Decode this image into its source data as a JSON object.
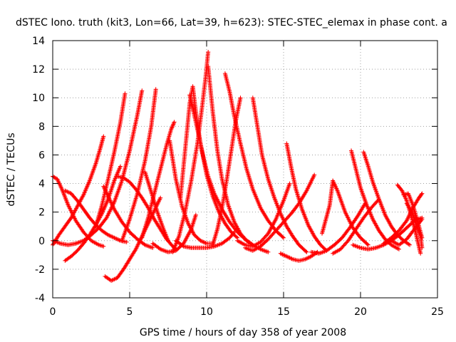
{
  "chart_data": {
    "type": "scatter",
    "title": "dSTEC Iono. truth (kit3, Lon=66, Lat=39, h=623): STEC-STEC_elemax in phase cont. a",
    "xlabel": "GPS time / hours of day 358 of year 2008",
    "ylabel": "dSTEC  / TECUs",
    "xlim": [
      0,
      25
    ],
    "ylim": [
      -4,
      14
    ],
    "xticks": [
      "0",
      "5",
      "10",
      "15",
      "20",
      "25"
    ],
    "yticks": [
      "-4",
      "-2",
      "0",
      "2",
      "4",
      "6",
      "8",
      "10",
      "12",
      "14"
    ],
    "grid": true,
    "marker": "+",
    "color": "#ff0000",
    "series": [
      {
        "arcs": [
          {
            "x": [
              0.0,
              0.3,
              0.6,
              1.0,
              1.5,
              2.0,
              2.5,
              3.0,
              3.3
            ],
            "y": [
              4.5,
              4.3,
              3.6,
              2.5,
              1.4,
              0.6,
              0.0,
              -0.3,
              -0.4
            ]
          },
          {
            "x": [
              0.0,
              0.4,
              0.8,
              1.2,
              1.6,
              2.0,
              2.4,
              2.8,
              3.1,
              3.3
            ],
            "y": [
              -0.3,
              0.4,
              1.0,
              1.6,
              2.4,
              3.2,
              4.2,
              5.4,
              6.5,
              7.3
            ]
          },
          {
            "x": [
              0.8,
              1.2,
              1.6,
              2.0,
              2.4,
              2.8,
              3.2,
              3.6,
              4.0,
              4.4,
              4.8
            ],
            "y": [
              3.5,
              3.3,
              2.8,
              2.2,
              1.6,
              1.1,
              0.7,
              0.4,
              0.2,
              0.0,
              -0.1
            ]
          },
          {
            "x": [
              0.8,
              1.2,
              1.6,
              2.0,
              2.4,
              2.8,
              3.2,
              3.6,
              4.0,
              4.4
            ],
            "y": [
              -1.4,
              -1.1,
              -0.7,
              -0.2,
              0.4,
              1.1,
              1.9,
              2.9,
              4.2,
              5.2
            ]
          }
        ]
      },
      {
        "arcs": [
          {
            "x": [
              0.0,
              0.5,
              1.0,
              1.5,
              2.0,
              2.5,
              3.0,
              3.5,
              4.0,
              4.5,
              5.0,
              5.5,
              5.8
            ],
            "y": [
              0.0,
              -0.2,
              -0.3,
              -0.2,
              0.0,
              0.4,
              0.9,
              1.6,
              2.7,
              4.2,
              6.3,
              8.8,
              10.5
            ]
          },
          {
            "x": [
              3.3,
              3.6,
              4.0,
              4.5,
              5.0,
              5.5,
              6.0,
              6.5
            ],
            "y": [
              3.8,
              3.1,
              2.2,
              1.3,
              0.6,
              0.1,
              -0.3,
              -0.5
            ]
          },
          {
            "x": [
              3.4,
              3.8,
              4.2,
              4.6,
              5.0,
              5.4,
              5.8,
              6.2,
              6.6,
              7.0
            ],
            "y": [
              -2.5,
              -2.8,
              -2.6,
              -2.0,
              -1.3,
              -0.6,
              0.3,
              1.2,
              2.1,
              3.0
            ]
          },
          {
            "x": [
              2.8,
              3.2,
              3.6,
              4.0,
              4.4,
              4.7
            ],
            "y": [
              1.0,
              2.5,
              4.3,
              6.2,
              8.3,
              10.3
            ]
          }
        ]
      },
      {
        "arcs": [
          {
            "x": [
              4.2,
              4.6,
              5.0,
              5.4,
              5.8,
              6.2,
              6.6,
              7.0,
              7.4,
              7.8,
              8.0
            ],
            "y": [
              4.5,
              4.4,
              4.1,
              3.6,
              3.0,
              2.3,
              1.5,
              0.8,
              0.1,
              -0.4,
              -0.6
            ]
          },
          {
            "x": [
              4.5,
              5.0,
              5.5,
              6.0,
              6.4,
              6.7
            ],
            "y": [
              0.0,
              1.5,
              3.3,
              5.6,
              8.0,
              10.6
            ]
          },
          {
            "x": [
              5.8,
              6.2,
              6.6,
              7.0,
              7.4,
              7.7,
              7.9
            ],
            "y": [
              0.2,
              1.6,
              3.3,
              5.0,
              6.7,
              7.8,
              8.3
            ]
          },
          {
            "x": [
              7.6,
              8.0,
              8.4,
              8.8,
              9.2,
              9.6,
              10.0,
              10.4
            ],
            "y": [
              7.0,
              4.3,
              2.4,
              1.2,
              0.4,
              0.0,
              -0.2,
              -0.2
            ]
          },
          {
            "x": [
              6.5,
              7.0,
              7.5,
              8.0,
              8.5,
              9.0,
              9.3
            ],
            "y": [
              -0.2,
              -0.6,
              -0.8,
              -0.7,
              -0.2,
              0.8,
              1.8
            ]
          },
          {
            "x": [
              6.0,
              6.4,
              6.8,
              7.2,
              7.5
            ],
            "y": [
              4.8,
              3.4,
              2.0,
              0.8,
              0.0
            ]
          }
        ]
      },
      {
        "arcs": [
          {
            "x": [
              7.8,
              8.2,
              8.6,
              9.0,
              9.4,
              9.7,
              9.95,
              10.1
            ],
            "y": [
              -0.8,
              0.3,
              2.0,
              4.2,
              6.8,
              9.3,
              11.6,
              13.2
            ]
          },
          {
            "x": [
              10.1,
              10.4,
              10.7,
              11.0,
              11.4,
              11.8,
              12.2,
              12.6,
              13.0
            ],
            "y": [
              12.2,
              9.0,
              6.3,
              4.3,
              2.5,
              1.3,
              0.5,
              0.0,
              -0.3
            ]
          },
          {
            "x": [
              8.3,
              8.6,
              8.9,
              9.1,
              9.3,
              9.6,
              10.0,
              10.4,
              10.8,
              11.2,
              11.6,
              12.0
            ],
            "y": [
              3.0,
              6.3,
              9.6,
              10.8,
              9.0,
              6.8,
              4.6,
              3.1,
              2.0,
              1.2,
              0.6,
              0.2
            ]
          },
          {
            "x": [
              8.9,
              9.2,
              9.5,
              9.8,
              10.1,
              10.5,
              11.0,
              11.5,
              12.0,
              12.5,
              13.0,
              13.5,
              14.0
            ],
            "y": [
              10.2,
              8.8,
              7.3,
              5.8,
              4.5,
              3.3,
              2.2,
              1.3,
              0.6,
              0.1,
              -0.3,
              -0.6,
              -0.8
            ]
          },
          {
            "x": [
              8.0,
              8.5,
              9.0,
              9.5,
              10.0,
              10.5,
              11.0,
              11.5,
              11.8
            ],
            "y": [
              0.0,
              -0.4,
              -0.5,
              -0.5,
              -0.5,
              -0.4,
              -0.2,
              0.2,
              0.6
            ]
          }
        ]
      },
      {
        "arcs": [
          {
            "x": [
              11.2,
              11.5,
              11.8,
              12.2,
              12.6,
              13.0,
              13.5,
              14.0,
              14.5,
              15.0
            ],
            "y": [
              11.7,
              10.4,
              8.7,
              6.8,
              5.0,
              3.6,
              2.3,
              1.4,
              0.7,
              0.2
            ]
          },
          {
            "x": [
              10.4,
              10.7,
              11.0,
              11.3,
              11.6,
              11.9,
              12.2
            ],
            "y": [
              -0.3,
              0.8,
              2.3,
              4.2,
              6.3,
              8.4,
              10.0
            ]
          },
          {
            "x": [
              13.0,
              13.3,
              13.6,
              14.0,
              14.4,
              14.8,
              15.2,
              15.6,
              16.0,
              16.5
            ],
            "y": [
              10.0,
              8.0,
              6.0,
              4.3,
              3.0,
              1.9,
              1.0,
              0.3,
              -0.3,
              -0.8
            ]
          },
          {
            "x": [
              12.0,
              12.5,
              13.0,
              13.5,
              14.0,
              14.5,
              15.0,
              15.4
            ],
            "y": [
              0.0,
              -0.3,
              -0.4,
              -0.1,
              0.5,
              1.5,
              2.8,
              4.0
            ]
          },
          {
            "x": [
              12.5,
              13.0,
              13.5,
              14.0,
              14.5,
              15.0,
              15.5,
              16.0,
              16.5,
              17.0
            ],
            "y": [
              -0.5,
              -0.7,
              -0.4,
              0.1,
              0.7,
              1.3,
              1.9,
              2.6,
              3.5,
              4.6
            ]
          },
          {
            "x": [
              15.2,
              15.5,
              15.8,
              16.2,
              16.6,
              17.0,
              17.4,
              17.8
            ],
            "y": [
              6.8,
              5.1,
              3.6,
              2.2,
              1.1,
              0.3,
              -0.3,
              -0.7
            ]
          },
          {
            "x": [
              14.8,
              15.2,
              15.6,
              16.0,
              16.4,
              16.8,
              17.2
            ],
            "y": [
              -0.9,
              -1.1,
              -1.3,
              -1.4,
              -1.3,
              -1.1,
              -0.8
            ]
          }
        ]
      },
      {
        "arcs": [
          {
            "x": [
              17.5,
              18.0,
              18.2,
              18.5,
              19.0,
              19.5,
              20.0,
              20.5
            ],
            "y": [
              0.5,
              2.5,
              4.2,
              3.5,
              2.0,
              0.9,
              0.2,
              -0.3
            ]
          },
          {
            "x": [
              16.8,
              17.3,
              17.8,
              18.3,
              18.8,
              19.3,
              19.8,
              20.3
            ],
            "y": [
              -0.8,
              -0.9,
              -0.7,
              -0.3,
              0.2,
              0.9,
              1.7,
              2.6
            ]
          },
          {
            "x": [
              19.4,
              19.7,
              20.0,
              20.4,
              20.8,
              21.2,
              21.6,
              22.0,
              22.5
            ],
            "y": [
              6.3,
              5.0,
              3.7,
              2.5,
              1.5,
              0.7,
              0.1,
              -0.3,
              -0.6
            ]
          },
          {
            "x": [
              20.2,
              20.5,
              20.8,
              21.2,
              21.6,
              22.0,
              22.4,
              22.8,
              23.2
            ],
            "y": [
              6.2,
              5.2,
              4.1,
              2.9,
              1.8,
              1.0,
              0.4,
              0.0,
              -0.3
            ]
          },
          {
            "x": [
              18.2,
              18.7,
              19.2,
              19.7,
              20.2,
              20.7,
              21.2
            ],
            "y": [
              -0.9,
              -0.6,
              0.0,
              0.8,
              1.6,
              2.3,
              2.9
            ]
          },
          {
            "x": [
              19.5,
              20.0,
              20.5,
              21.0,
              21.5,
              22.0,
              22.5,
              23.0,
              23.5,
              24.0
            ],
            "y": [
              -0.3,
              -0.5,
              -0.6,
              -0.5,
              -0.3,
              0.0,
              0.4,
              0.9,
              1.4,
              1.6
            ]
          }
        ]
      },
      {
        "arcs": [
          {
            "x": [
              22.4,
              22.7,
              23.0,
              23.3,
              23.6,
              23.9
            ],
            "y": [
              3.9,
              3.5,
              2.8,
              1.7,
              0.5,
              -0.9
            ]
          },
          {
            "x": [
              21.5,
              22.0,
              22.5,
              23.0,
              23.4,
              23.8,
              24.0
            ],
            "y": [
              -0.2,
              0.2,
              0.7,
              1.4,
              2.3,
              3.0,
              3.3
            ]
          },
          {
            "x": [
              22.8,
              23.1,
              23.4,
              23.7,
              24.0
            ],
            "y": [
              3.2,
              3.3,
              2.5,
              1.4,
              0.2
            ]
          },
          {
            "x": [
              22.0,
              22.5,
              23.0,
              23.5,
              24.0
            ],
            "y": [
              0.0,
              -0.3,
              0.1,
              0.8,
              1.5
            ]
          },
          {
            "x": [
              23.0,
              23.3,
              23.6,
              23.9,
              24.0
            ],
            "y": [
              2.6,
              2.1,
              1.2,
              0.3,
              -0.5
            ]
          }
        ]
      }
    ]
  }
}
